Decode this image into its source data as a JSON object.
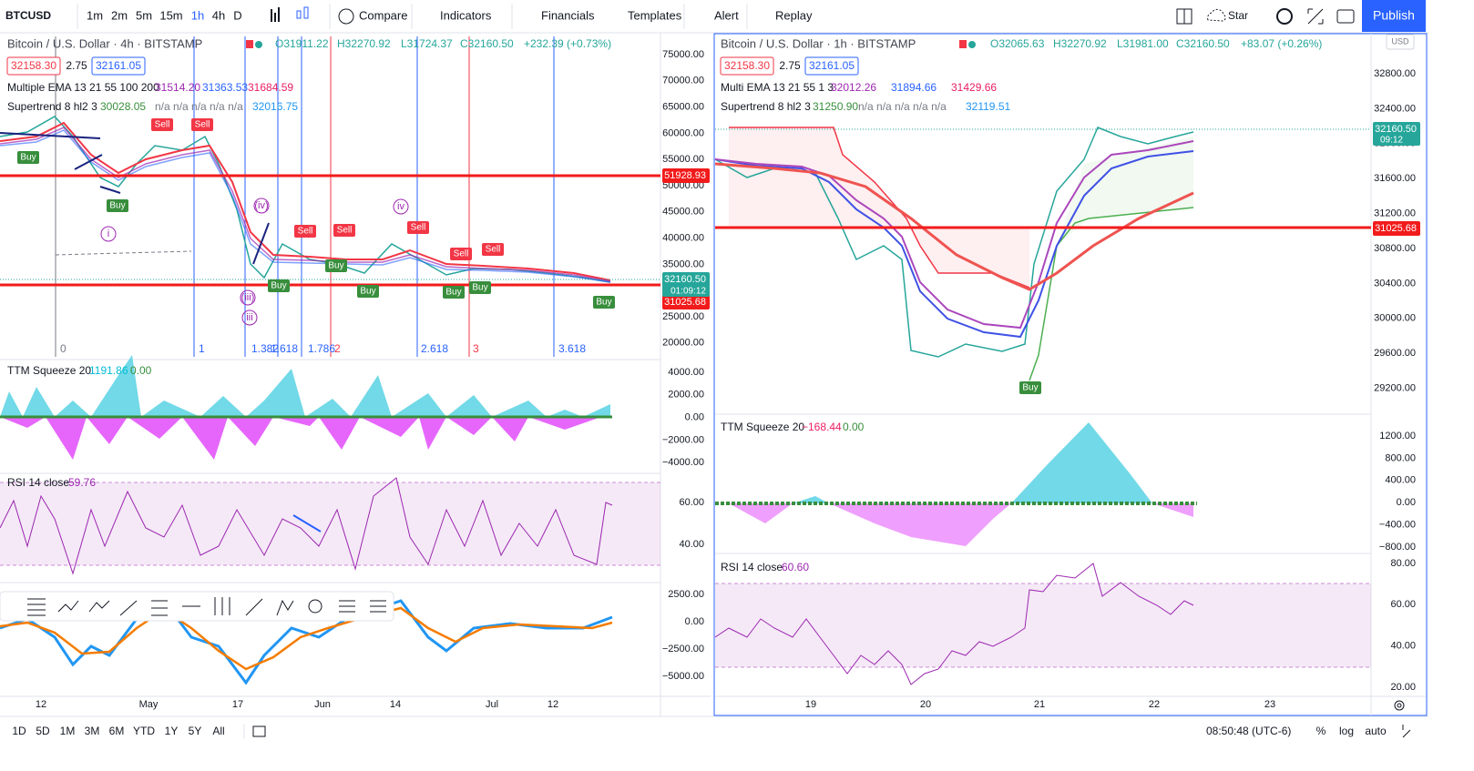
{
  "toolbar": {
    "symbol": "BTCUSD",
    "intervals": [
      "1m",
      "2m",
      "5m",
      "15m",
      "1h",
      "4h",
      "D"
    ],
    "buttons": [
      "Compare",
      "Indicators",
      "Financials",
      "Templates",
      "Alert",
      "Replay"
    ],
    "star": "Star",
    "publish": "Publish"
  },
  "left": {
    "title": "Bitcoin / U.S. Dollar · 4h · BITSTAMP",
    "ohlc": [
      "O31911.22",
      "H32270.92",
      "L31724.37",
      "C32160.50",
      "+232.39 (+0.73%)"
    ],
    "bid": "32158.30",
    "spread": "2.75",
    "ask": "32161.05",
    "ema": {
      "name": "Multiple EMA 13 21 55 100 200",
      "values": [
        "31514.20",
        "31363.53",
        "31684.59"
      ]
    },
    "supertrend": {
      "name": "Supertrend 8 hl2 3",
      "values": [
        "30028.05",
        "n/a n/a n/a n/a n/a",
        "32016.75"
      ]
    },
    "price_axis": [
      "75000.00",
      "70000.00",
      "65000.00",
      "60000.00",
      "55000.00",
      "50000.00",
      "45000.00",
      "40000.00",
      "35000.00",
      "30000.00",
      "25000.00",
      "20000.00"
    ],
    "price_tags": [
      "51928.93",
      "32160.50",
      "01:09:12",
      "31025.68"
    ],
    "fib_labels": [
      "0",
      "1",
      "1.382",
      "1.618",
      "1.786",
      "2",
      "2.618",
      "3",
      "3.618"
    ],
    "signals": [
      "Buy",
      "Buy",
      "Sell",
      "Sell",
      "Sell",
      "Sell",
      "Sell",
      "Sell",
      "Sell",
      "Buy",
      "Buy",
      "Buy",
      "Buy",
      "Buy",
      "Buy"
    ],
    "waves": [
      "i",
      "(iii)",
      "iii",
      "(iv)",
      "iv"
    ],
    "ttm": {
      "name": "TTM Squeeze 20",
      "values": [
        "1191.86",
        "0.00"
      ],
      "axis": [
        "4000.00",
        "2000.00",
        "0.00",
        "−2000.00",
        "−4000.00"
      ]
    },
    "rsi": {
      "name": "RSI 14 close",
      "value": "59.76",
      "axis": [
        "60.00",
        "40.00"
      ]
    },
    "osc_axis": [
      "2500.00",
      "0.00",
      "−2500.00",
      "−5000.00"
    ],
    "dates": [
      "12",
      "May",
      "17",
      "Jun",
      "14",
      "Jul",
      "12"
    ]
  },
  "right": {
    "title": "Bitcoin / U.S. Dollar · 1h · BITSTAMP",
    "ohlc": [
      "O32065.63",
      "H32270.92",
      "L31981.00",
      "C32160.50",
      "+83.07 (+0.26%)"
    ],
    "bid": "32158.30",
    "spread": "2.75",
    "ask": "32161.05",
    "ema": {
      "name": "Multi EMA 13 21 55 1 3",
      "values": [
        "32012.26",
        "31894.66",
        "31429.66"
      ]
    },
    "supertrend": {
      "name": "Supertrend 8 hl2 3",
      "values": [
        "31250.90",
        "n/a n/a n/a n/a n/a",
        "32119.51"
      ]
    },
    "currency": "USD",
    "price_axis": [
      "32800.00",
      "32400.00",
      "32000.00",
      "31600.00",
      "31200.00",
      "30800.00",
      "30400.00",
      "30000.00",
      "29600.00",
      "29200.00"
    ],
    "price_tags": [
      "32160.50",
      "09:12",
      "31025.68"
    ],
    "signals": [
      "Buy"
    ],
    "ttm": {
      "name": "TTM Squeeze 20",
      "values": [
        "−168.44",
        "0.00"
      ],
      "axis": [
        "1200.00",
        "800.00",
        "400.00",
        "0.00",
        "−400.00",
        "−800.00"
      ]
    },
    "rsi": {
      "name": "RSI 14 close",
      "value": "60.60",
      "axis": [
        "80.00",
        "60.00",
        "40.00",
        "20.00"
      ]
    },
    "dates": [
      "19",
      "20",
      "21",
      "22",
      "23"
    ]
  },
  "bottom": {
    "ranges": [
      "1D",
      "5D",
      "1M",
      "3M",
      "6M",
      "YTD",
      "1Y",
      "5Y",
      "All"
    ],
    "time": "08:50:48 (UTC-6)",
    "percent": "%",
    "log": "log",
    "auto": "auto"
  }
}
